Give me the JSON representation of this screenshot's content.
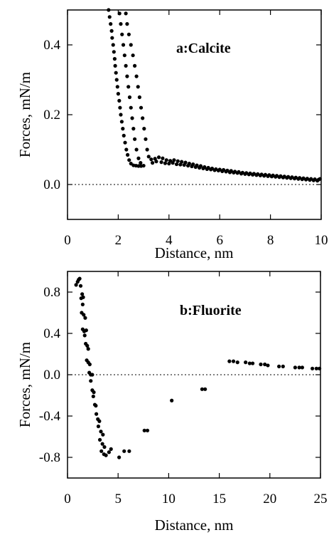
{
  "chart_data": [
    {
      "type": "scatter",
      "annotation": "a:Calcite",
      "xlabel": "Distance, nm",
      "ylabel": "Forces, mN/m",
      "xlim": [
        0,
        10
      ],
      "ylim": [
        -0.1,
        0.5
      ],
      "xticks": [
        0,
        2,
        4,
        6,
        8,
        10
      ],
      "yticks": [
        0.0,
        0.2,
        0.4
      ],
      "xtick_labels": [
        "0",
        "2",
        "4",
        "6",
        "8",
        "10"
      ],
      "ytick_labels": [
        "0.0",
        "0.2",
        "0.4"
      ],
      "reference_line": {
        "y": 0.0,
        "style": "dotted"
      },
      "grid": false,
      "marker_color": "#000000",
      "series": [
        {
          "points": [
            [
              1.62,
              0.5
            ],
            [
              1.66,
              0.48
            ],
            [
              1.7,
              0.46
            ],
            [
              1.74,
              0.44
            ],
            [
              1.76,
              0.42
            ],
            [
              1.8,
              0.4
            ],
            [
              1.83,
              0.38
            ],
            [
              1.86,
              0.36
            ],
            [
              1.88,
              0.34
            ],
            [
              1.91,
              0.32
            ],
            [
              1.94,
              0.3
            ],
            [
              1.97,
              0.28
            ],
            [
              2.0,
              0.26
            ],
            [
              2.04,
              0.24
            ],
            [
              2.07,
              0.22
            ],
            [
              2.1,
              0.2
            ],
            [
              2.14,
              0.18
            ],
            [
              2.18,
              0.16
            ],
            [
              2.22,
              0.14
            ],
            [
              2.27,
              0.12
            ],
            [
              2.32,
              0.1
            ],
            [
              2.37,
              0.085
            ],
            [
              2.43,
              0.07
            ],
            [
              2.5,
              0.06
            ],
            [
              2.6,
              0.055
            ],
            [
              2.7,
              0.054
            ],
            [
              2.8,
              0.053
            ],
            [
              2.9,
              0.053
            ],
            [
              3.0,
              0.054
            ],
            [
              2.05,
              0.49
            ],
            [
              2.1,
              0.46
            ],
            [
              2.15,
              0.43
            ],
            [
              2.2,
              0.4
            ],
            [
              2.25,
              0.37
            ],
            [
              2.3,
              0.34
            ],
            [
              2.35,
              0.31
            ],
            [
              2.4,
              0.28
            ],
            [
              2.45,
              0.25
            ],
            [
              2.5,
              0.22
            ],
            [
              2.55,
              0.19
            ],
            [
              2.6,
              0.16
            ],
            [
              2.65,
              0.13
            ],
            [
              2.72,
              0.1
            ],
            [
              2.8,
              0.075
            ],
            [
              2.88,
              0.062
            ],
            [
              2.3,
              0.49
            ],
            [
              2.35,
              0.46
            ],
            [
              2.42,
              0.43
            ],
            [
              2.5,
              0.4
            ],
            [
              2.58,
              0.37
            ],
            [
              2.65,
              0.34
            ],
            [
              2.72,
              0.31
            ],
            [
              2.78,
              0.28
            ],
            [
              2.84,
              0.25
            ],
            [
              2.9,
              0.22
            ],
            [
              2.96,
              0.19
            ],
            [
              3.02,
              0.16
            ],
            [
              3.08,
              0.13
            ],
            [
              3.14,
              0.1
            ],
            [
              3.2,
              0.08
            ],
            [
              3.3,
              0.072
            ],
            [
              3.45,
              0.074
            ],
            [
              3.6,
              0.078
            ],
            [
              3.75,
              0.075
            ],
            [
              3.9,
              0.07
            ],
            [
              4.05,
              0.068
            ],
            [
              4.2,
              0.07
            ],
            [
              4.35,
              0.067
            ],
            [
              4.5,
              0.065
            ],
            [
              4.65,
              0.063
            ],
            [
              4.8,
              0.06
            ],
            [
              4.95,
              0.058
            ],
            [
              5.1,
              0.055
            ],
            [
              5.25,
              0.053
            ],
            [
              5.4,
              0.05
            ],
            [
              5.55,
              0.048
            ],
            [
              5.7,
              0.046
            ],
            [
              5.85,
              0.044
            ],
            [
              6.0,
              0.043
            ],
            [
              6.15,
              0.042
            ],
            [
              6.3,
              0.04
            ],
            [
              6.45,
              0.039
            ],
            [
              6.6,
              0.037
            ],
            [
              6.75,
              0.036
            ],
            [
              6.9,
              0.034
            ],
            [
              7.05,
              0.033
            ],
            [
              7.2,
              0.032
            ],
            [
              7.35,
              0.031
            ],
            [
              7.5,
              0.03
            ],
            [
              7.65,
              0.029
            ],
            [
              7.8,
              0.028
            ],
            [
              7.95,
              0.027
            ],
            [
              8.1,
              0.026
            ],
            [
              8.25,
              0.025
            ],
            [
              8.4,
              0.024
            ],
            [
              8.55,
              0.023
            ],
            [
              8.7,
              0.022
            ],
            [
              8.85,
              0.021
            ],
            [
              9.0,
              0.02
            ],
            [
              9.15,
              0.019
            ],
            [
              9.3,
              0.018
            ],
            [
              9.45,
              0.017
            ],
            [
              9.6,
              0.016
            ],
            [
              9.75,
              0.015
            ],
            [
              9.9,
              0.014
            ],
            [
              3.35,
              0.062
            ],
            [
              3.5,
              0.066
            ],
            [
              3.7,
              0.064
            ],
            [
              3.85,
              0.061
            ],
            [
              4.0,
              0.06
            ],
            [
              4.15,
              0.062
            ],
            [
              4.3,
              0.058
            ],
            [
              4.45,
              0.057
            ],
            [
              4.6,
              0.056
            ],
            [
              4.75,
              0.054
            ],
            [
              4.9,
              0.052
            ],
            [
              5.05,
              0.05
            ],
            [
              5.2,
              0.048
            ],
            [
              5.35,
              0.046
            ],
            [
              5.5,
              0.044
            ],
            [
              5.65,
              0.043
            ],
            [
              5.8,
              0.041
            ],
            [
              5.95,
              0.04
            ],
            [
              6.1,
              0.038
            ],
            [
              6.25,
              0.037
            ],
            [
              6.4,
              0.035
            ],
            [
              6.55,
              0.034
            ],
            [
              6.7,
              0.033
            ],
            [
              6.85,
              0.031
            ],
            [
              7.0,
              0.03
            ],
            [
              7.15,
              0.029
            ],
            [
              7.3,
              0.028
            ],
            [
              7.45,
              0.027
            ],
            [
              7.6,
              0.026
            ],
            [
              7.75,
              0.025
            ],
            [
              7.9,
              0.024
            ],
            [
              8.05,
              0.023
            ],
            [
              8.2,
              0.022
            ],
            [
              8.35,
              0.021
            ],
            [
              8.5,
              0.02
            ],
            [
              8.65,
              0.019
            ],
            [
              8.8,
              0.018
            ],
            [
              8.95,
              0.017
            ],
            [
              9.1,
              0.016
            ],
            [
              9.25,
              0.015
            ],
            [
              9.4,
              0.014
            ],
            [
              9.55,
              0.013
            ],
            [
              9.7,
              0.012
            ],
            [
              9.85,
              0.011
            ],
            [
              9.95,
              0.016
            ]
          ]
        }
      ]
    },
    {
      "type": "scatter",
      "annotation": "b:Fluorite",
      "xlabel": "Distance, nm",
      "ylabel": "Forces, mN/m",
      "xlim": [
        0,
        25
      ],
      "ylim": [
        -1.0,
        1.0
      ],
      "xticks": [
        0,
        5,
        10,
        15,
        20,
        25
      ],
      "yticks": [
        -0.8,
        -0.4,
        0.0,
        0.4,
        0.8
      ],
      "xtick_labels": [
        "0",
        "5",
        "10",
        "15",
        "20",
        "25"
      ],
      "ytick_labels": [
        "-0.8",
        "-0.4",
        "0.0",
        "0.4",
        "0.8"
      ],
      "reference_line": {
        "y": 0.0,
        "style": "dotted"
      },
      "grid": false,
      "marker_color": "#000000",
      "series": [
        {
          "points": [
            [
              0.85,
              0.87
            ],
            [
              1.0,
              0.9
            ],
            [
              1.1,
              0.92
            ],
            [
              1.2,
              0.93
            ],
            [
              1.3,
              0.86
            ],
            [
              1.45,
              0.78
            ],
            [
              1.55,
              0.75
            ],
            [
              1.35,
              0.74
            ],
            [
              1.5,
              0.68
            ],
            [
              1.4,
              0.6
            ],
            [
              1.6,
              0.58
            ],
            [
              1.75,
              0.55
            ],
            [
              1.5,
              0.44
            ],
            [
              1.65,
              0.42
            ],
            [
              1.85,
              0.43
            ],
            [
              1.7,
              0.38
            ],
            [
              1.8,
              0.3
            ],
            [
              1.95,
              0.28
            ],
            [
              2.05,
              0.25
            ],
            [
              1.9,
              0.14
            ],
            [
              2.05,
              0.12
            ],
            [
              2.2,
              0.1
            ],
            [
              2.15,
              0.02
            ],
            [
              2.3,
              0.0
            ],
            [
              2.45,
              0.0
            ],
            [
              2.3,
              -0.06
            ],
            [
              2.45,
              -0.15
            ],
            [
              2.6,
              -0.17
            ],
            [
              2.55,
              -0.21
            ],
            [
              2.7,
              -0.29
            ],
            [
              2.8,
              -0.3
            ],
            [
              2.85,
              -0.38
            ],
            [
              3.0,
              -0.43
            ],
            [
              3.15,
              -0.45
            ],
            [
              3.05,
              -0.5
            ],
            [
              3.3,
              -0.55
            ],
            [
              3.5,
              -0.58
            ],
            [
              3.2,
              -0.63
            ],
            [
              3.45,
              -0.67
            ],
            [
              3.65,
              -0.7
            ],
            [
              3.35,
              -0.74
            ],
            [
              3.6,
              -0.77
            ],
            [
              3.8,
              -0.78
            ],
            [
              4.1,
              -0.75
            ],
            [
              4.3,
              -0.72
            ],
            [
              5.1,
              -0.8
            ],
            [
              5.6,
              -0.74
            ],
            [
              6.1,
              -0.74
            ],
            [
              7.6,
              -0.54
            ],
            [
              7.9,
              -0.54
            ],
            [
              10.3,
              -0.25
            ],
            [
              13.3,
              -0.14
            ],
            [
              13.6,
              -0.14
            ],
            [
              16.0,
              0.13
            ],
            [
              16.4,
              0.13
            ],
            [
              16.8,
              0.12
            ],
            [
              17.6,
              0.12
            ],
            [
              18.0,
              0.11
            ],
            [
              18.3,
              0.11
            ],
            [
              19.1,
              0.1
            ],
            [
              19.5,
              0.1
            ],
            [
              19.8,
              0.09
            ],
            [
              20.9,
              0.08
            ],
            [
              21.3,
              0.08
            ],
            [
              22.5,
              0.07
            ],
            [
              22.9,
              0.07
            ],
            [
              23.2,
              0.07
            ],
            [
              24.2,
              0.06
            ],
            [
              24.6,
              0.06
            ],
            [
              24.9,
              0.06
            ]
          ]
        }
      ]
    }
  ]
}
